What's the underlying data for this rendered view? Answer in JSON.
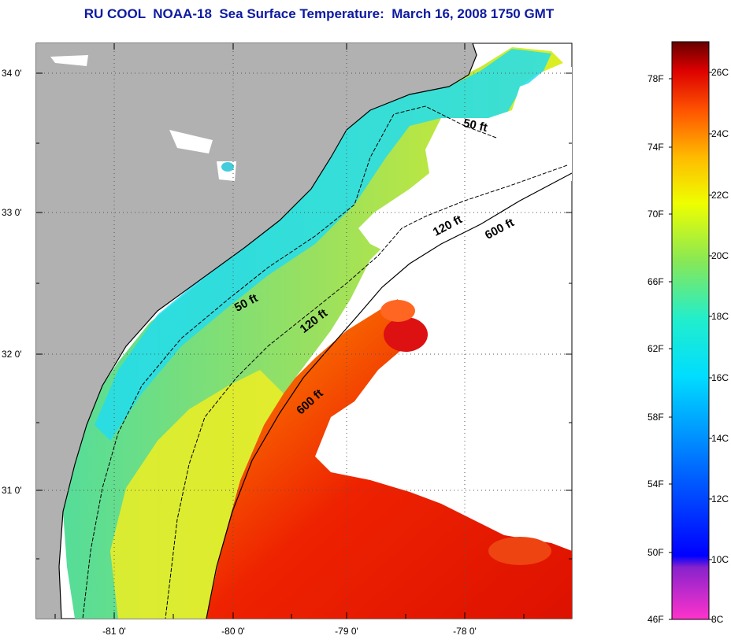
{
  "title": "RU COOL  NOAA-18  Sea Surface Temperature:  March 16, 2008 1750 GMT",
  "map": {
    "lat_ticks": [
      "34 0'",
      "33 0'",
      "32 0'",
      "31 0'"
    ],
    "lon_ticks": [
      "-81 0'",
      "-80 0'",
      "-79 0'",
      "-78 0'"
    ],
    "contour_labels": [
      {
        "text": "50 ft",
        "name": "contour-label-50ft-north"
      },
      {
        "text": "120 ft",
        "name": "contour-label-120ft-north"
      },
      {
        "text": "600 ft",
        "name": "contour-label-600ft-north"
      },
      {
        "text": "50 ft",
        "name": "contour-label-50ft-south"
      },
      {
        "text": "120 ft",
        "name": "contour-label-120ft-south"
      },
      {
        "text": "600 ft",
        "name": "contour-label-600ft-south"
      }
    ]
  },
  "colorbar": {
    "fahrenheit_labels": [
      "78F",
      "74F",
      "70F",
      "66F",
      "62F",
      "58F",
      "54F",
      "50F",
      "46F"
    ],
    "celsius_labels": [
      "26C",
      "24C",
      "22C",
      "20C",
      "18C",
      "16C",
      "14C",
      "12C",
      "10C",
      "8C"
    ],
    "colors": [
      "#ff33cc",
      "#7a22cc",
      "#0000ff",
      "#0077ff",
      "#00ccff",
      "#00ffdd",
      "#55ee88",
      "#aaee33",
      "#ffff00",
      "#ffaa00",
      "#ff5500",
      "#ee0000",
      "#aa0000",
      "#660000"
    ]
  }
}
